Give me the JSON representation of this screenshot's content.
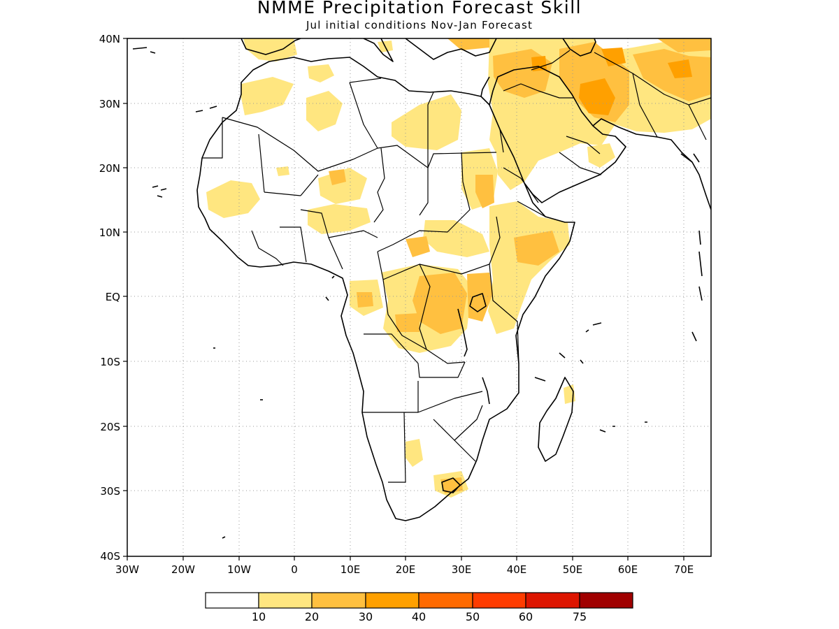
{
  "title": "NMME Precipitation Forecast Skill",
  "subtitle": "Jul initial conditions   Nov-Jan Forecast",
  "map": {
    "region": "Africa",
    "lon_range": [
      -30,
      75
    ],
    "lat_range": [
      -40,
      40
    ],
    "grid": "dotted",
    "lat_ticks": [
      "40N",
      "30N",
      "20N",
      "10N",
      "EQ",
      "10S",
      "20S",
      "30S",
      "40S"
    ],
    "lon_ticks": [
      "30W",
      "20W",
      "10W",
      "0",
      "10E",
      "20E",
      "30E",
      "40E",
      "50E",
      "60E",
      "70E"
    ]
  },
  "legend": {
    "colors": [
      "#ffffff",
      "#ffe680",
      "#ffc040",
      "#ffa000",
      "#ff6a00",
      "#ff3c00",
      "#dd1500",
      "#a00000"
    ],
    "labels": [
      "10",
      "20",
      "30",
      "40",
      "50",
      "60",
      "75"
    ]
  }
}
